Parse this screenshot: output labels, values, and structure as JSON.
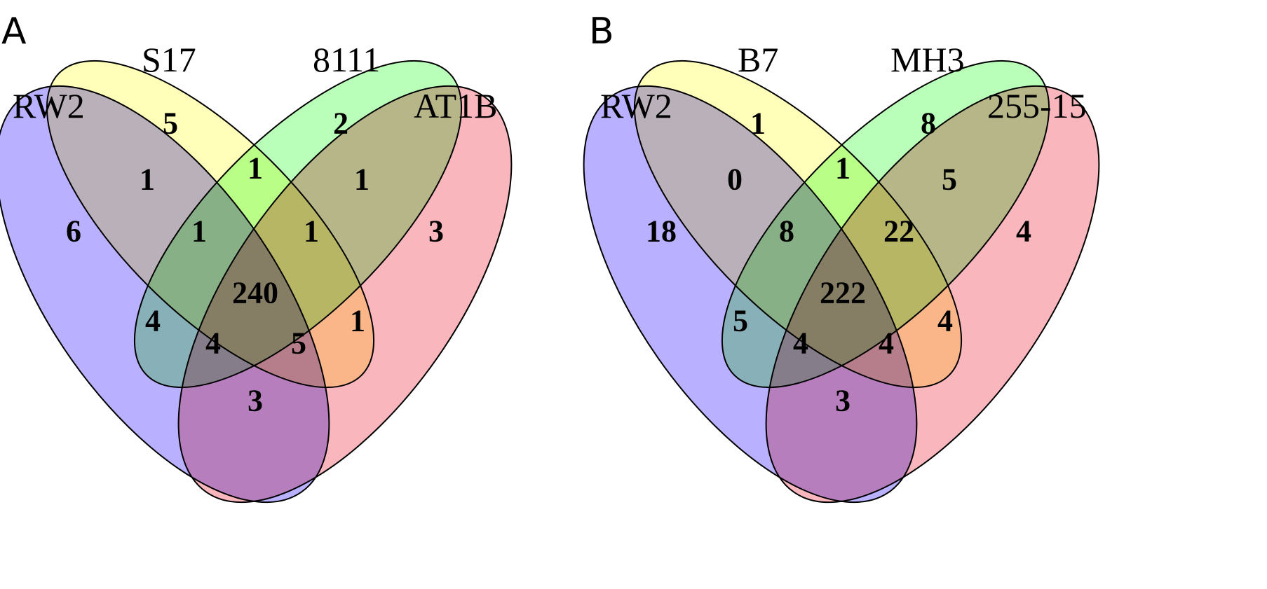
{
  "panels": [
    {
      "letter": "A",
      "sets": [
        {
          "label": "RW2",
          "color": "#8070ff"
        },
        {
          "label": "S17",
          "color": "#ffff80"
        },
        {
          "label": "8111",
          "color": "#80ff80"
        },
        {
          "label": "AT1B",
          "color": "#f57a86"
        }
      ],
      "counts": {
        "only_1": "6",
        "only_2": "5",
        "only_3": "2",
        "only_4": "3",
        "r12": "1",
        "r23": "1",
        "r34": "1",
        "r123": "1",
        "r234": "1",
        "r1234": "240",
        "r13": "4",
        "r24": "1",
        "r134": "4",
        "r124": "5",
        "r14": "3"
      }
    },
    {
      "letter": "B",
      "sets": [
        {
          "label": "RW2",
          "color": "#8070ff"
        },
        {
          "label": "B7",
          "color": "#ffff80"
        },
        {
          "label": "MH3",
          "color": "#80ff80"
        },
        {
          "label": "255-15",
          "color": "#f57a86"
        }
      ],
      "counts": {
        "only_1": "18",
        "only_2": "1",
        "only_3": "8",
        "only_4": "4",
        "r12": "0",
        "r23": "1",
        "r34": "5",
        "r123": "8",
        "r234": "22",
        "r1234": "222",
        "r13": "5",
        "r24": "4",
        "r134": "4",
        "r124": "4",
        "r14": "3"
      }
    }
  ]
}
